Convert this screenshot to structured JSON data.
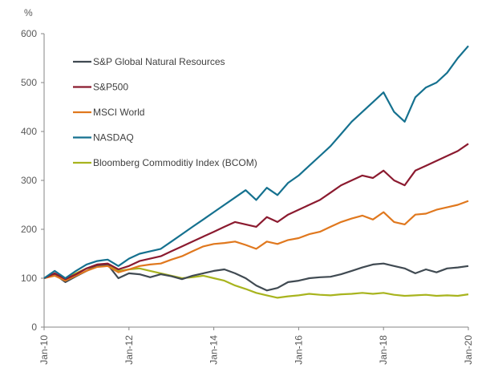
{
  "chart_data": {
    "type": "line",
    "title": "",
    "ylabel": "%",
    "xlabel": "",
    "ylim": [
      0,
      600
    ],
    "yticks": [
      0,
      100,
      200,
      300,
      400,
      500,
      600
    ],
    "xticks": [
      "Jan-10",
      "Jan-12",
      "Jan-14",
      "Jan-16",
      "Jan-18",
      "Jan-20"
    ],
    "x_start": "Jan-10",
    "x_end": "Jan-20",
    "x_frequency": "quarterly",
    "grid": false,
    "legend_position": "top-left",
    "series": [
      {
        "name": "S&P Global Natural Resources",
        "color": "#404A52",
        "values": [
          100,
          108,
          92,
          104,
          115,
          125,
          128,
          100,
          110,
          108,
          102,
          108,
          104,
          98,
          105,
          110,
          115,
          118,
          110,
          100,
          85,
          75,
          80,
          92,
          95,
          100,
          102,
          103,
          108,
          115,
          122,
          128,
          130,
          125,
          120,
          110,
          118,
          112,
          120,
          122,
          125
        ]
      },
      {
        "name": "S&P500",
        "color": "#8B1A2F",
        "values": [
          100,
          110,
          98,
          108,
          120,
          128,
          130,
          118,
          125,
          135,
          140,
          145,
          155,
          165,
          175,
          185,
          195,
          205,
          215,
          210,
          205,
          225,
          215,
          230,
          240,
          250,
          260,
          275,
          290,
          300,
          310,
          305,
          320,
          300,
          290,
          320,
          330,
          340,
          350,
          360,
          375
        ]
      },
      {
        "name": "MSCI World",
        "color": "#E0781E",
        "values": [
          100,
          105,
          95,
          105,
          115,
          123,
          125,
          112,
          118,
          125,
          128,
          130,
          138,
          145,
          155,
          165,
          170,
          172,
          175,
          168,
          160,
          175,
          170,
          178,
          182,
          190,
          195,
          205,
          215,
          222,
          228,
          220,
          235,
          215,
          210,
          230,
          232,
          240,
          245,
          250,
          258
        ]
      },
      {
        "name": "NASDAQ",
        "color": "#15718F",
        "values": [
          100,
          115,
          100,
          115,
          128,
          135,
          138,
          125,
          140,
          150,
          155,
          160,
          175,
          190,
          205,
          220,
          235,
          250,
          265,
          280,
          260,
          285,
          270,
          295,
          310,
          330,
          350,
          370,
          395,
          420,
          440,
          460,
          480,
          440,
          420,
          470,
          490,
          500,
          520,
          550,
          575
        ]
      },
      {
        "name": "Bloomberg Commoditiy Index (BCOM)",
        "color": "#A8B41E",
        "values": [
          100,
          108,
          100,
          110,
          120,
          125,
          126,
          115,
          118,
          120,
          115,
          110,
          105,
          100,
          102,
          105,
          100,
          95,
          85,
          78,
          70,
          65,
          60,
          63,
          65,
          68,
          66,
          65,
          67,
          68,
          70,
          68,
          70,
          66,
          64,
          65,
          66,
          64,
          65,
          64,
          67
        ]
      }
    ]
  }
}
